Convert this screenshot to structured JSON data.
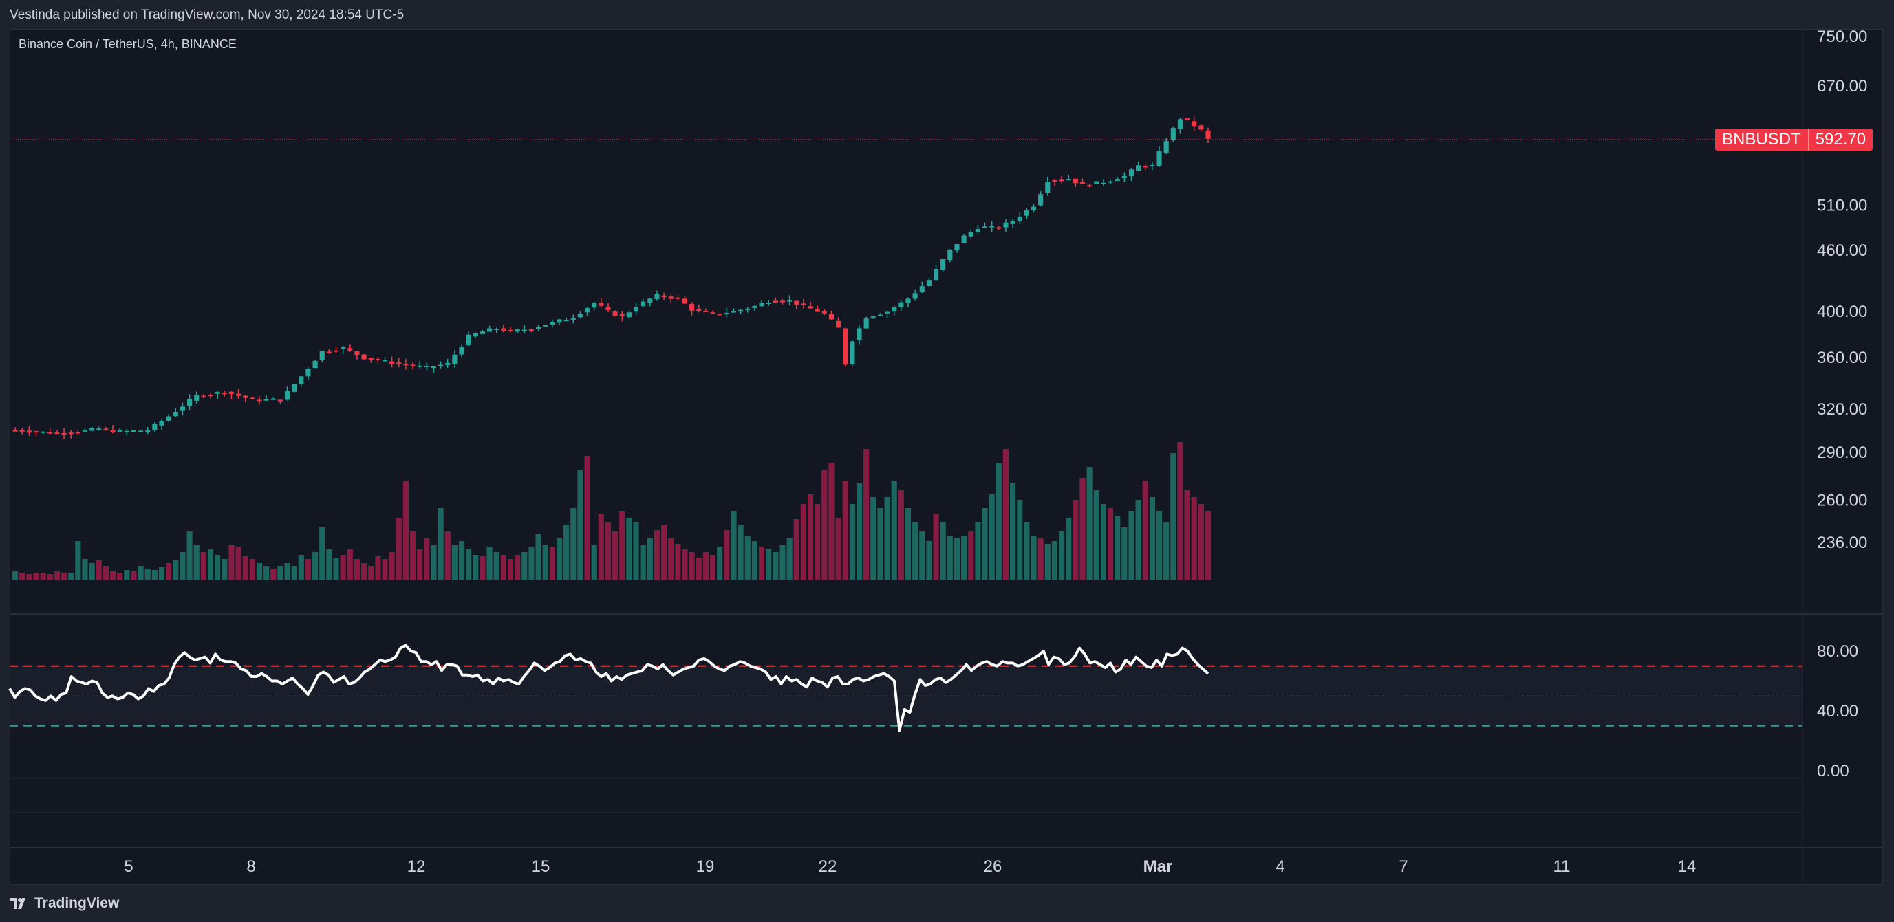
{
  "header": {
    "published_text": "Vestinda published on TradingView.com, Nov 30, 2024 18:54 UTC-5"
  },
  "symbol": {
    "title": "Binance Coin / TetherUS, 4h, BINANCE",
    "ticker": "BNBUSDT",
    "last_price": "592.70"
  },
  "footer": {
    "brand": "TradingView"
  },
  "colors": {
    "up": "#26a69a",
    "down": "#f23645",
    "rsi_line": "#ffffff",
    "rsi_upper": "#f23645",
    "rsi_lower": "#26a69a",
    "background": "#131722",
    "frame": "#1e222d"
  },
  "chart_data": [
    {
      "type": "candlestick",
      "title": "Binance Coin / TetherUS, 4h, BINANCE",
      "ylim": [
        215,
        750
      ],
      "y_scale": "log",
      "y_ticks": [
        "750.00",
        "670.00",
        "510.00",
        "460.00",
        "400.00",
        "360.00",
        "320.00",
        "290.00",
        "260.00",
        "236.00"
      ],
      "y_tick_values": [
        750,
        670,
        510,
        460,
        400,
        360,
        320,
        290,
        260,
        236
      ],
      "x_ticks": [
        "5",
        "8",
        "12",
        "15",
        "19",
        "22",
        "26",
        "Mar",
        "4",
        "7",
        "11",
        "14"
      ],
      "last_price": 592.7,
      "price_path": [
        [
          0,
          305
        ],
        [
          6,
          303
        ],
        [
          9,
          304
        ],
        [
          12,
          306
        ],
        [
          15,
          304
        ],
        [
          19,
          305
        ],
        [
          22,
          315
        ],
        [
          26,
          330
        ],
        [
          30,
          333
        ],
        [
          34,
          327
        ],
        [
          38,
          327
        ],
        [
          41,
          345
        ],
        [
          44,
          365
        ],
        [
          47,
          368
        ],
        [
          50,
          360
        ],
        [
          55,
          355
        ],
        [
          59,
          352
        ],
        [
          62,
          355
        ],
        [
          65,
          378
        ],
        [
          67,
          382
        ],
        [
          69,
          385
        ],
        [
          71,
          382
        ],
        [
          74,
          385
        ],
        [
          77,
          390
        ],
        [
          80,
          395
        ],
        [
          83,
          408
        ],
        [
          85,
          400
        ],
        [
          87,
          395
        ],
        [
          89,
          405
        ],
        [
          92,
          415
        ],
        [
          95,
          412
        ],
        [
          97,
          402
        ],
        [
          100,
          398
        ],
        [
          103,
          400
        ],
        [
          106,
          405
        ],
        [
          108,
          410
        ],
        [
          111,
          410
        ],
        [
          113,
          405
        ],
        [
          116,
          398
        ],
        [
          118,
          385
        ],
        [
          119,
          355
        ],
        [
          120,
          375
        ],
        [
          122,
          395
        ],
        [
          125,
          400
        ],
        [
          128,
          412
        ],
        [
          131,
          430
        ],
        [
          134,
          460
        ],
        [
          136,
          475
        ],
        [
          138,
          485
        ],
        [
          141,
          485
        ],
        [
          143,
          492
        ],
        [
          146,
          510
        ],
        [
          148,
          540
        ],
        [
          151,
          542
        ],
        [
          153,
          534
        ],
        [
          156,
          538
        ],
        [
          159,
          545
        ],
        [
          161,
          558
        ],
        [
          163,
          558
        ],
        [
          165,
          592
        ],
        [
          167,
          622
        ],
        [
          168,
          618
        ],
        [
          169,
          612
        ],
        [
          170,
          605
        ],
        [
          171,
          592.7
        ]
      ],
      "volume": {
        "baseline_value": 0,
        "levels": [
          0.06,
          0.05,
          0.04,
          0.05,
          0.05,
          0.04,
          0.06,
          0.05,
          0.05,
          0.28,
          0.15,
          0.12,
          0.14,
          0.1,
          0.06,
          0.05,
          0.07,
          0.06,
          0.1,
          0.08,
          0.07,
          0.09,
          0.12,
          0.14,
          0.2,
          0.35,
          0.25,
          0.2,
          0.22,
          0.18,
          0.15,
          0.25,
          0.24,
          0.17,
          0.15,
          0.12,
          0.1,
          0.08,
          0.1,
          0.12,
          0.1,
          0.18,
          0.15,
          0.2,
          0.38,
          0.22,
          0.16,
          0.18,
          0.22,
          0.15,
          0.12,
          0.1,
          0.17,
          0.15,
          0.2,
          0.45,
          0.72,
          0.35,
          0.22,
          0.3,
          0.25,
          0.52,
          0.35,
          0.25,
          0.28,
          0.22,
          0.18,
          0.17,
          0.24,
          0.2,
          0.18,
          0.15,
          0.18,
          0.2,
          0.24,
          0.33,
          0.25,
          0.24,
          0.3,
          0.4,
          0.52,
          0.8,
          0.9,
          0.25,
          0.48,
          0.42,
          0.35,
          0.5,
          0.45,
          0.42,
          0.25,
          0.3,
          0.36,
          0.4,
          0.3,
          0.26,
          0.22,
          0.2,
          0.16,
          0.2,
          0.18,
          0.24,
          0.36,
          0.5,
          0.4,
          0.32,
          0.28,
          0.24,
          0.22,
          0.2,
          0.25,
          0.3,
          0.44,
          0.55,
          0.62,
          0.55,
          0.8,
          0.85,
          0.45,
          0.72,
          0.55,
          0.7,
          0.95,
          0.6,
          0.52,
          0.6,
          0.72,
          0.65,
          0.52,
          0.42,
          0.35,
          0.28,
          0.48,
          0.42,
          0.32,
          0.3,
          0.32,
          0.35,
          0.42,
          0.52,
          0.62,
          0.85,
          0.95,
          0.7,
          0.58,
          0.42,
          0.32,
          0.3,
          0.26,
          0.28,
          0.35,
          0.45,
          0.58,
          0.74,
          0.82,
          0.65,
          0.55,
          0.52,
          0.46,
          0.38,
          0.5,
          0.58,
          0.72,
          0.6,
          0.5,
          0.42,
          0.92,
          1.0,
          0.65,
          0.6,
          0.55,
          0.5,
          0.58,
          0.66,
          0.72,
          0.45,
          0.58,
          0.7,
          0.75,
          0.62,
          0.55,
          0.95,
          0.62,
          0.72,
          0.58,
          0.45
        ]
      }
    },
    {
      "type": "line",
      "title": "",
      "ylim": [
        -15,
        110
      ],
      "y_ticks": [
        "80.00",
        "40.00",
        "0.00"
      ],
      "y_tick_values": [
        80,
        40,
        0
      ],
      "bands": {
        "upper": 70,
        "middle": 50,
        "lower": 30
      },
      "series": [
        {
          "values": [
            55,
            49,
            53,
            55,
            54,
            50,
            48,
            47,
            50,
            47,
            51,
            52,
            63,
            60,
            59,
            58,
            60,
            59,
            52,
            49,
            50,
            48,
            49,
            52,
            51,
            48,
            50,
            55,
            53,
            57,
            58,
            62,
            71,
            76,
            79,
            76,
            74,
            75,
            76,
            72,
            78,
            74,
            73,
            73,
            72,
            68,
            67,
            63,
            63,
            65,
            63,
            60,
            60,
            58,
            60,
            62,
            58,
            55,
            51,
            57,
            64,
            66,
            64,
            59,
            61,
            63,
            58,
            59,
            62,
            66,
            68,
            71,
            74,
            73,
            74,
            76,
            82,
            84,
            80,
            79,
            73,
            73,
            71,
            73,
            67,
            71,
            71,
            70,
            64,
            64,
            63,
            64,
            60,
            61,
            58,
            62,
            60,
            61,
            59,
            58,
            63,
            67,
            72,
            70,
            67,
            69,
            72,
            73,
            77,
            78,
            74,
            75,
            73,
            72,
            66,
            63,
            65,
            60,
            63,
            61,
            64,
            65,
            66,
            67,
            71,
            70,
            68,
            71,
            67,
            64,
            66,
            68,
            69,
            70,
            74,
            75,
            73,
            70,
            68,
            67,
            70,
            71,
            73,
            72,
            70,
            69,
            68,
            66,
            61,
            63,
            58,
            63,
            60,
            61,
            58,
            56,
            62,
            60,
            59,
            56,
            62,
            63,
            58,
            58,
            61,
            62,
            60,
            61,
            63,
            64,
            65,
            63,
            60,
            27,
            41,
            39,
            51,
            61,
            57,
            58,
            61,
            62,
            59,
            61,
            64,
            67,
            71,
            67,
            70,
            72,
            73,
            71,
            70,
            73,
            72,
            72,
            70,
            71,
            73,
            75,
            77,
            80,
            71,
            76,
            75,
            71,
            72,
            76,
            82,
            78,
            72,
            73,
            71,
            69,
            72,
            66,
            68,
            74,
            71,
            76,
            73,
            70,
            69,
            74,
            70,
            78,
            77,
            78,
            82,
            80,
            75,
            71,
            68,
            65
          ]
        }
      ],
      "x_ticks": [
        "5",
        "8",
        "12",
        "15",
        "19",
        "22",
        "26",
        "Mar",
        "4",
        "7",
        "11",
        "14"
      ]
    }
  ]
}
